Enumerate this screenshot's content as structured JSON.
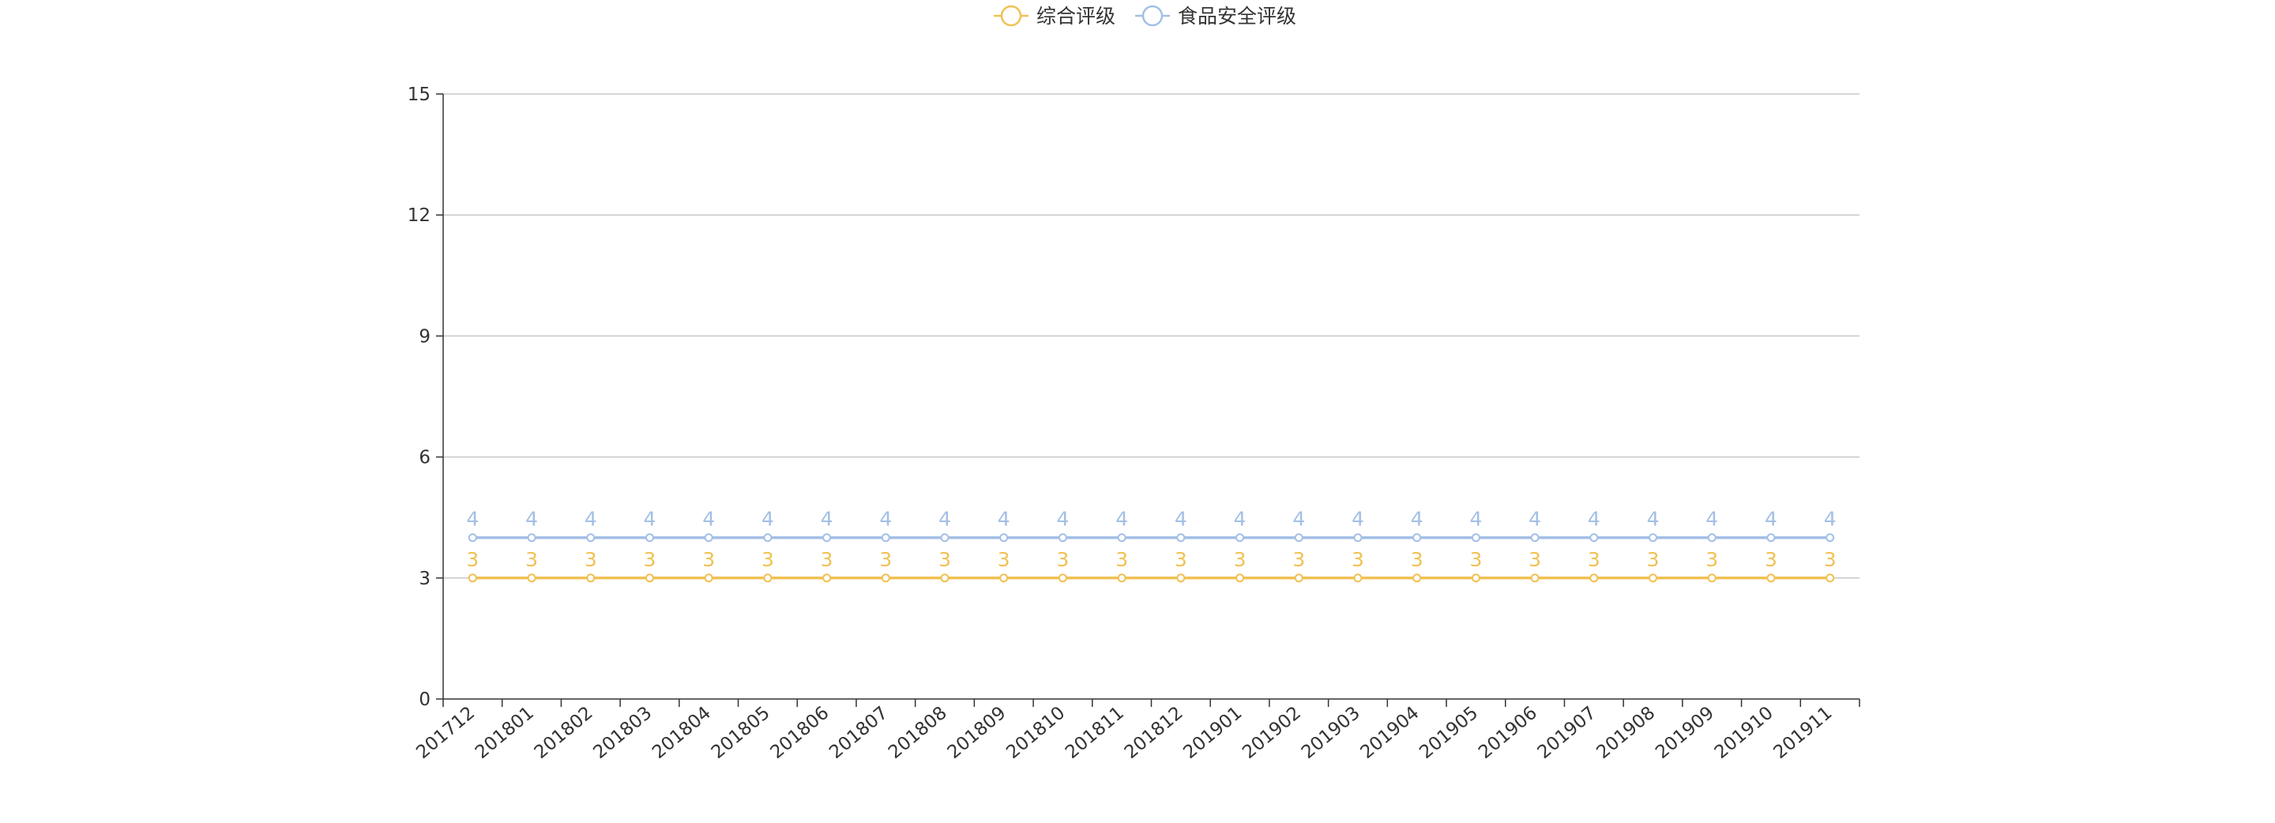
{
  "chart_data": {
    "type": "line",
    "title": "",
    "xlabel": "",
    "ylabel": "",
    "categories": [
      "201712",
      "201801",
      "201802",
      "201803",
      "201804",
      "201805",
      "201806",
      "201807",
      "201808",
      "201809",
      "201810",
      "201811",
      "201812",
      "201901",
      "201902",
      "201903",
      "201904",
      "201905",
      "201906",
      "201907",
      "201908",
      "201909",
      "201910",
      "201911"
    ],
    "series": [
      {
        "name": "综合评级",
        "color": "#f0c154",
        "values": [
          3,
          3,
          3,
          3,
          3,
          3,
          3,
          3,
          3,
          3,
          3,
          3,
          3,
          3,
          3,
          3,
          3,
          3,
          3,
          3,
          3,
          3,
          3,
          3
        ]
      },
      {
        "name": "食品安全评级",
        "color": "#a3bfe6",
        "values": [
          4,
          4,
          4,
          4,
          4,
          4,
          4,
          4,
          4,
          4,
          4,
          4,
          4,
          4,
          4,
          4,
          4,
          4,
          4,
          4,
          4,
          4,
          4,
          4
        ]
      }
    ],
    "ylim": [
      0,
      15
    ],
    "yticks": [
      0,
      3,
      6,
      9,
      12,
      15
    ],
    "grid": true,
    "legend_position": "top-center",
    "data_labels": true,
    "colors": {
      "axis": "#333333",
      "grid": "#c8c8c8",
      "legend_text": "#333333",
      "tick_text": "#333333"
    }
  }
}
